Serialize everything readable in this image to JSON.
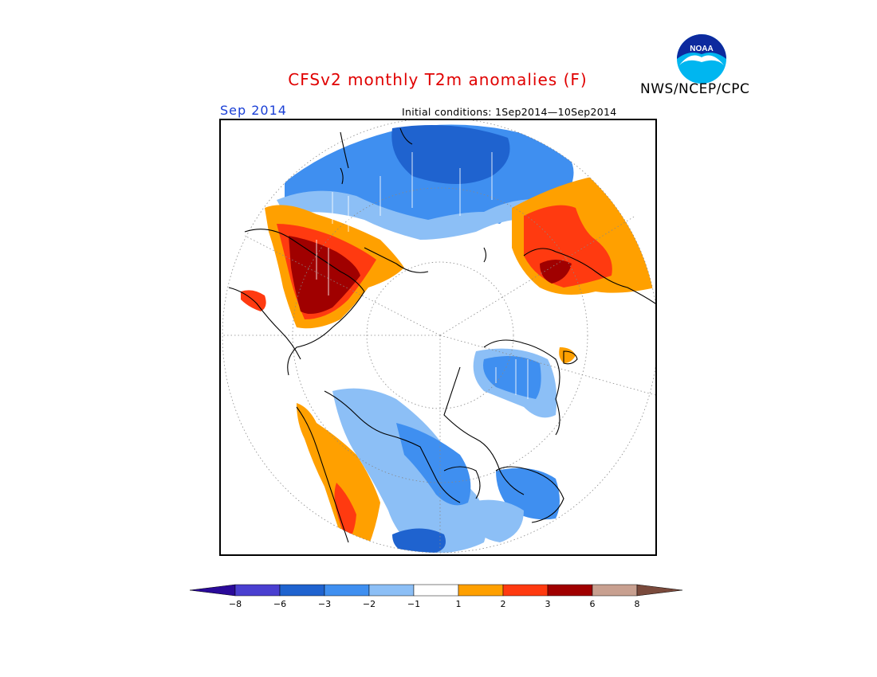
{
  "title": "CFSv2 monthly T2m anomalies (F)",
  "valid_month": "Sep 2014",
  "initial_conditions": "Initial conditions: 1Sep2014—10Sep2014",
  "agency": "NWS/NCEP/CPC",
  "logo": {
    "text": "NOAA",
    "icon": "noaa-logo-icon"
  },
  "colors": {
    "title": "#e00000",
    "valid_month": "#1a3fd6",
    "frame": "#000000"
  },
  "legend": {
    "type": "colorbar",
    "orientation": "horizontal",
    "placement": "bottom",
    "extend": "both",
    "bins": [
      {
        "range": "< -8",
        "color": "#2a0a99"
      },
      {
        "range": "-8 to -6",
        "color": "#4a3fd0"
      },
      {
        "range": "-6 to -3",
        "color": "#1f63cf"
      },
      {
        "range": "-3 to -2",
        "color": "#3f8ff0"
      },
      {
        "range": "-2 to -1",
        "color": "#8cbff6"
      },
      {
        "range": "-1 to 1",
        "color": "#ffffff"
      },
      {
        "range": "1 to 2",
        "color": "#ffa000"
      },
      {
        "range": "2 to 3",
        "color": "#ff3a10"
      },
      {
        "range": "3 to 6",
        "color": "#a00000"
      },
      {
        "range": "6 to 8",
        "color": "#c8a090"
      },
      {
        "range": "> 8",
        "color": "#7a4a3c"
      }
    ],
    "tick_labels": [
      "−8",
      "−6",
      "−3",
      "−2",
      "−1",
      "1",
      "2",
      "3",
      "6",
      "8"
    ]
  },
  "map": {
    "projection": "north polar stereographic",
    "grid": "dotted latitude circles and meridians",
    "regions": [
      {
        "name": "Northern Europe and Scandinavia",
        "anomaly_bin": "3 to 6"
      },
      {
        "name": "Greenland Sea / Atlantic",
        "anomaly_bin": "-6 to -3"
      },
      {
        "name": "Eastern Siberia",
        "anomaly_bin": "2 to 3"
      },
      {
        "name": "Alaska and Bering Sea",
        "anomaly_bin": "1 to 2"
      },
      {
        "name": "Canadian Arctic Archipelago",
        "anomaly_bin": "-3 to -2"
      },
      {
        "name": "Western North America",
        "anomaly_bin": "2 to 3"
      },
      {
        "name": "Eastern North America",
        "anomaly_bin": "-2 to -1"
      }
    ]
  }
}
